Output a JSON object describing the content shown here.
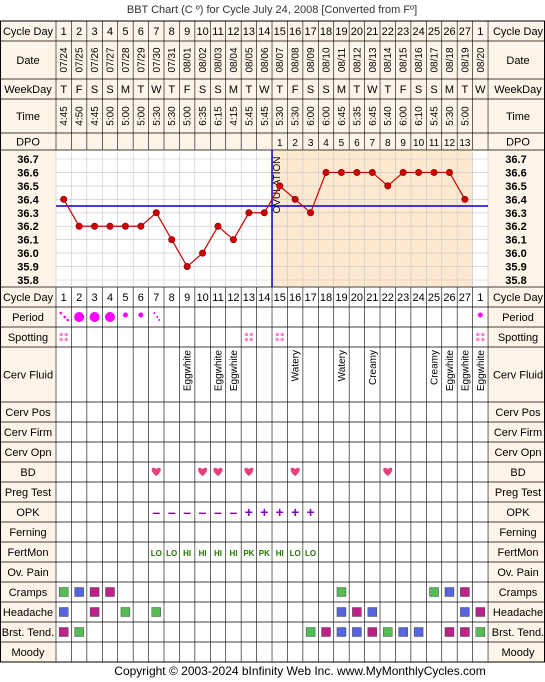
{
  "title": "BBT Chart (C º) for Cycle July 24, 2008  [Converted from Fº]",
  "footer": "Copyright © 2003-2024 bInfinity Web Inc.    www.MyMonthlyCycles.com",
  "colors": {
    "header_bg": "#fff4e8",
    "follicular_bg": "#ffffff",
    "luteal_bg": "#fde9cf",
    "grid_line": "#c8c8c8",
    "temp_line": "#cc0000",
    "coverline": "#0000cc",
    "heart": "#e8407a",
    "period": "#ff00ff",
    "spotting": "#ff88cc",
    "fertmon": "#227700",
    "opk": "#8800cc"
  },
  "row_labels": {
    "cycle_day": "Cycle Day",
    "date": "Date",
    "weekday": "WeekDay",
    "time": "Time",
    "dpo": "DPO",
    "period": "Period",
    "spotting": "Spotting",
    "cerv_fluid": "Cerv Fluid",
    "cerv_pos": "Cerv Pos",
    "cerv_firm": "Cerv Firm",
    "cerv_opn": "Cerv Opn",
    "bd": "BD",
    "preg_test": "Preg Test",
    "opk": "OPK",
    "ferning": "Ferning",
    "fertmon": "FertMon",
    "ov_pain": "Ov. Pain",
    "cramps": "Cramps",
    "headache": "Headache",
    "brst_tend": "Brst. Tend.",
    "moody": "Moody"
  },
  "ovulation_label": "OVULATION",
  "chart_data": {
    "type": "line",
    "title": "BBT Chart (C º) for Cycle July 24, 2008  [Converted from Fº]",
    "cycle_days": [
      "1",
      "2",
      "3",
      "4",
      "5",
      "6",
      "7",
      "8",
      "9",
      "10",
      "11",
      "12",
      "13",
      "14",
      "15",
      "16",
      "17",
      "18",
      "19",
      "20",
      "21",
      "22",
      "23",
      "24",
      "25",
      "26",
      "27",
      "1"
    ],
    "dates": [
      "07/24",
      "07/25",
      "07/26",
      "07/27",
      "07/28",
      "07/29",
      "07/30",
      "07/31",
      "08/01",
      "08/02",
      "08/03",
      "08/04",
      "08/05",
      "08/06",
      "08/07",
      "08/08",
      "08/09",
      "08/10",
      "08/11",
      "08/12",
      "08/13",
      "08/14",
      "08/15",
      "08/16",
      "08/17",
      "08/18",
      "08/19",
      "08/20"
    ],
    "weekdays": [
      "T",
      "F",
      "S",
      "S",
      "M",
      "T",
      "W",
      "T",
      "F",
      "S",
      "S",
      "M",
      "T",
      "W",
      "T",
      "F",
      "S",
      "S",
      "M",
      "T",
      "W",
      "T",
      "F",
      "S",
      "S",
      "M",
      "T",
      "W"
    ],
    "times": [
      "4:45",
      "4:50",
      "4:45",
      "5:00",
      "5:00",
      "5:00",
      "5:30",
      "5:30",
      "5:00",
      "6:35",
      "6:15",
      "4:15",
      "5:45",
      "5:45",
      "5:30",
      "5:30",
      "6:00",
      "6:00",
      "6:45",
      "5:35",
      "6:45",
      "5:40",
      "6:00",
      "6:10",
      "5:45",
      "5:30",
      "5:00",
      ""
    ],
    "dpo": [
      "",
      "",
      "",
      "",
      "",
      "",
      "",
      "",
      "",
      "",
      "",
      "",
      "",
      "",
      "1",
      "2",
      "3",
      "4",
      "5",
      "6",
      "7",
      "8",
      "9",
      "10",
      "11",
      "12",
      "13",
      ""
    ],
    "temperatures": [
      36.4,
      36.2,
      36.2,
      36.2,
      36.2,
      36.2,
      36.3,
      36.1,
      35.9,
      36.0,
      36.2,
      36.1,
      36.3,
      36.3,
      36.5,
      36.4,
      36.3,
      36.6,
      36.6,
      36.6,
      36.6,
      36.5,
      36.6,
      36.6,
      36.6,
      36.6,
      36.4,
      null
    ],
    "y_ticks": [
      "36.7",
      "36.6",
      "36.5",
      "36.4",
      "36.3",
      "36.2",
      "36.1",
      "36.0",
      "35.9",
      "35.8"
    ],
    "ylim": [
      35.8,
      36.7
    ],
    "coverline": 36.35,
    "ovulation_day": 14,
    "period": [
      "light",
      "heavy",
      "heavy",
      "heavy",
      "medium",
      "medium",
      "spotting",
      "",
      "",
      "",
      "",
      "",
      "",
      "",
      "",
      "",
      "",
      "",
      "",
      "",
      "",
      "",
      "",
      "",
      "",
      "",
      "",
      "medium"
    ],
    "spotting": [
      true,
      false,
      false,
      false,
      false,
      false,
      false,
      false,
      false,
      false,
      false,
      false,
      true,
      false,
      true,
      false,
      false,
      false,
      false,
      false,
      false,
      false,
      false,
      false,
      false,
      false,
      false,
      true
    ],
    "cerv_fluid": [
      "",
      "",
      "",
      "",
      "",
      "",
      "",
      "",
      "Eggwhite",
      "",
      "Eggwhite",
      "Eggwhite",
      "",
      "",
      "",
      "Watery",
      "",
      "",
      "Watery",
      "",
      "Creamy",
      "",
      "",
      "",
      "Creamy",
      "Eggwhite",
      "Eggwhite",
      "Eggwhite"
    ],
    "bd": [
      false,
      false,
      false,
      false,
      false,
      false,
      true,
      false,
      false,
      true,
      true,
      false,
      true,
      false,
      false,
      true,
      false,
      false,
      false,
      false,
      false,
      true,
      false,
      false,
      false,
      false,
      false,
      false
    ],
    "opk": [
      "",
      "",
      "",
      "",
      "",
      "",
      "–",
      "–",
      "–",
      "–",
      "–",
      "–",
      "+",
      "+",
      "+",
      "+",
      "+",
      "",
      "",
      "",
      "",
      "",
      "",
      "",
      "",
      "",
      "",
      ""
    ],
    "fertmon": [
      "",
      "",
      "",
      "",
      "",
      "",
      "LO",
      "LO",
      "HI",
      "HI",
      "HI",
      "HI",
      "PK",
      "PK",
      "HI",
      "LO",
      "LO",
      "",
      "",
      "",
      "",
      "",
      "",
      "",
      "",
      "",
      "",
      ""
    ],
    "cramps": [
      "green",
      "blue",
      "magenta",
      "magenta",
      "",
      "",
      "",
      "",
      "",
      "",
      "",
      "",
      "",
      "",
      "",
      "",
      "",
      "",
      "green",
      "",
      "",
      "",
      "",
      "",
      "green",
      "blue",
      "magenta",
      ""
    ],
    "headache": [
      "blue",
      "",
      "magenta",
      "",
      "green",
      "",
      "green",
      "",
      "",
      "",
      "",
      "",
      "",
      "",
      "",
      "",
      "",
      "",
      "blue",
      "magenta",
      "blue",
      "",
      "",
      "",
      "",
      "",
      "blue",
      "magenta"
    ],
    "brst_tend": [
      "magenta",
      "green",
      "",
      "",
      "",
      "",
      "",
      "",
      "",
      "",
      "",
      "",
      "",
      "",
      "",
      "",
      "green",
      "magenta",
      "blue",
      "blue",
      "magenta",
      "green",
      "blue",
      "blue",
      "",
      "magenta",
      "magenta",
      "green"
    ]
  }
}
